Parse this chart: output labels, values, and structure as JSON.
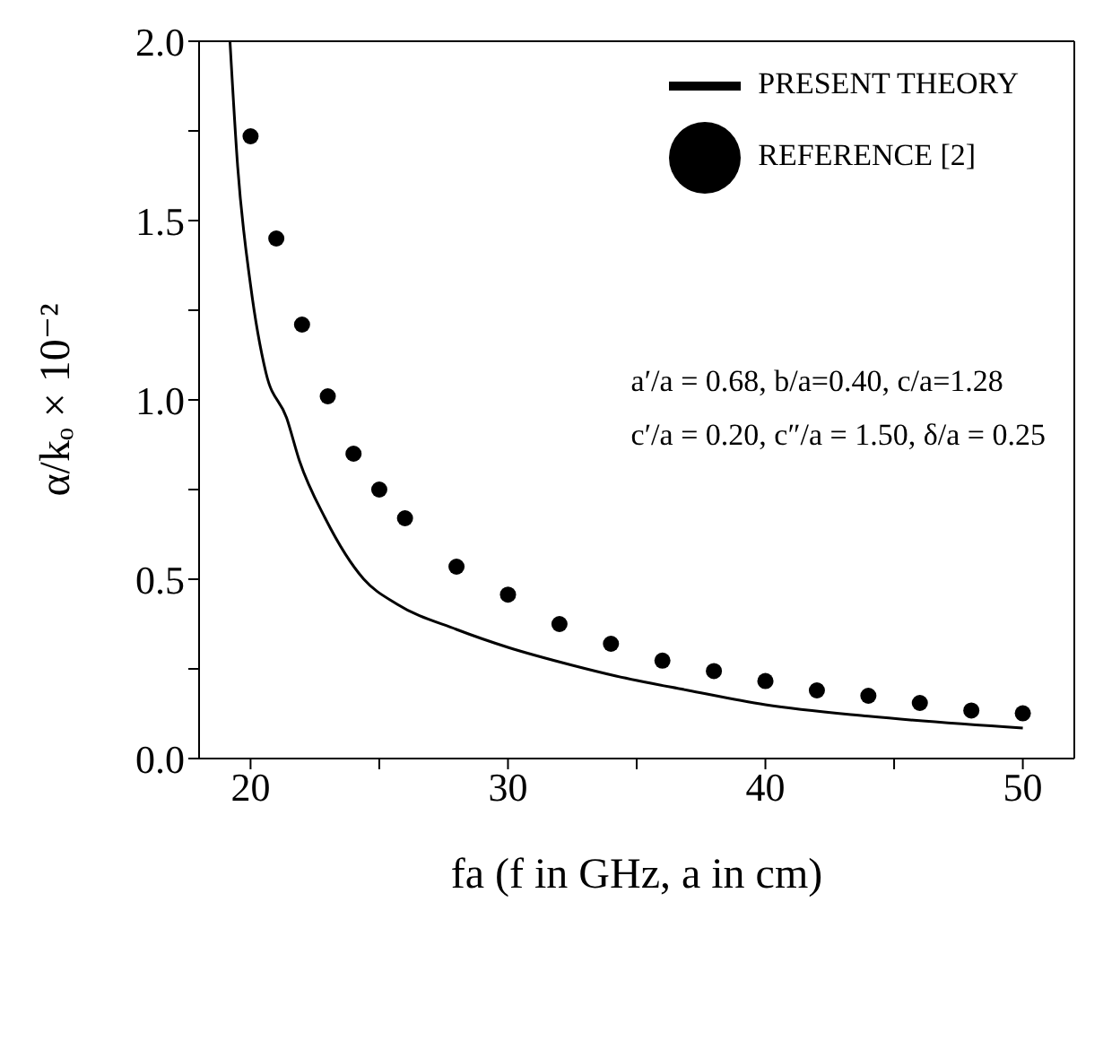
{
  "chart_data": {
    "type": "line",
    "xlabel": "fa (f in GHz, a in cm)",
    "ylabel": "α/kₒ × 10⁻²",
    "xlim": [
      18,
      52
    ],
    "xticks": [
      20,
      {
        "value": 25,
        "label": null
      },
      30,
      {
        "value": 35,
        "label": null
      },
      40,
      {
        "value": 45,
        "label": null
      },
      50
    ],
    "ylim": [
      0,
      2.0
    ],
    "yticks": [
      {
        "value": 0,
        "label": "0.0"
      },
      {
        "value": 0.25,
        "label": null
      },
      {
        "value": 0.5,
        "label": "0.5"
      },
      {
        "value": 0.75,
        "label": null
      },
      {
        "value": 1.0,
        "label": "1.0"
      },
      {
        "value": 1.25,
        "label": null
      },
      {
        "value": 1.5,
        "label": "1.5"
      },
      {
        "value": 1.75,
        "label": null
      },
      {
        "value": 2.0,
        "label": "2.0"
      }
    ],
    "legend": "top right",
    "series": [
      {
        "name": "PRESENT THEORY",
        "color": "#000000",
        "marker": "none",
        "line_style": "solid",
        "x": [
          19.2,
          19.5,
          20,
          20.6,
          21.4,
          21.9,
          22.9,
          24.4,
          25.7,
          28,
          30,
          32.5,
          34.2,
          37,
          40,
          44,
          50
        ],
        "values": [
          2.0,
          1.65,
          1.32,
          1.075,
          0.95,
          0.83,
          0.67,
          0.5,
          0.43,
          0.36,
          0.31,
          0.26,
          0.23,
          0.19,
          0.15,
          0.118,
          0.085
        ]
      },
      {
        "name": "REFERENCE [2]",
        "type": "scatter",
        "color": "#000000",
        "marker": "circle",
        "x": [
          20,
          21,
          22,
          23,
          24,
          25,
          26,
          28,
          30,
          32,
          34,
          36,
          38,
          40,
          42,
          44,
          46,
          48,
          50
        ],
        "values": [
          1.735,
          1.45,
          1.21,
          1.01,
          0.85,
          0.75,
          0.67,
          0.535,
          0.457,
          0.375,
          0.32,
          0.273,
          0.244,
          0.216,
          0.19,
          0.175,
          0.155,
          0.134,
          0.126
        ]
      }
    ],
    "annotations": [
      "a′/a = 0.68, b/a=0.40, c/a=1.28",
      "c′/a = 0.20, c″/a = 1.50, δ/a = 0.25"
    ]
  }
}
